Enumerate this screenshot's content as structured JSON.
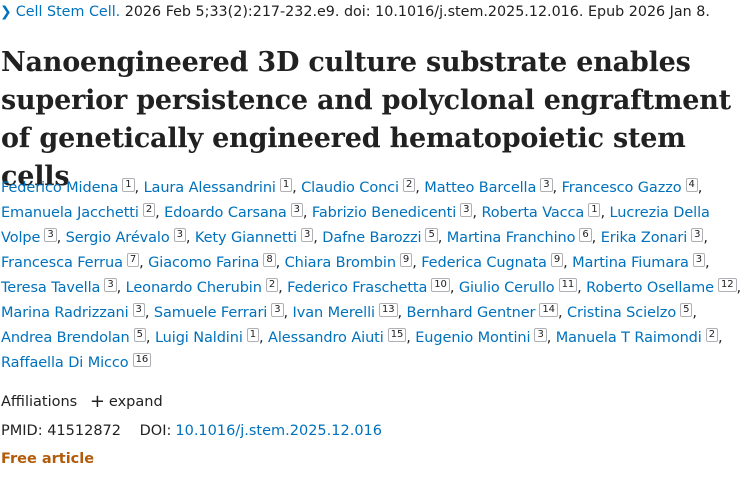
{
  "citation": {
    "journal": "Cell Stem Cell.",
    "details": " 2026 Feb 5;33(2):217-232.e9. doi: 10.1016/j.stem.2025.12.016. Epub 2026 Jan 8."
  },
  "title": "Nanoengineered 3D culture substrate enables superior persistence and polyclonal engraftment of genetically engineered hematopoietic stem cells",
  "authors": [
    {
      "name": "Federico Midena",
      "aff": "1"
    },
    {
      "name": "Laura Alessandrini",
      "aff": "1"
    },
    {
      "name": "Claudio Conci",
      "aff": "2"
    },
    {
      "name": "Matteo Barcella",
      "aff": "3"
    },
    {
      "name": "Francesco Gazzo",
      "aff": "4"
    },
    {
      "name": "Emanuela Jacchetti",
      "aff": "2"
    },
    {
      "name": "Edoardo Carsana",
      "aff": "3"
    },
    {
      "name": "Fabrizio Benedicenti",
      "aff": "3"
    },
    {
      "name": "Roberta Vacca",
      "aff": "1"
    },
    {
      "name": "Lucrezia Della Volpe",
      "aff": "3"
    },
    {
      "name": "Sergio Arévalo",
      "aff": "3"
    },
    {
      "name": "Kety Giannetti",
      "aff": "3"
    },
    {
      "name": "Dafne Barozzi",
      "aff": "5"
    },
    {
      "name": "Martina Franchino",
      "aff": "6"
    },
    {
      "name": "Erika Zonari",
      "aff": "3"
    },
    {
      "name": "Francesca Ferrua",
      "aff": "7"
    },
    {
      "name": "Giacomo Farina",
      "aff": "8"
    },
    {
      "name": "Chiara Brombin",
      "aff": "9"
    },
    {
      "name": "Federica Cugnata",
      "aff": "9"
    },
    {
      "name": "Martina Fiumara",
      "aff": "3"
    },
    {
      "name": "Teresa Tavella",
      "aff": "3"
    },
    {
      "name": "Leonardo Cherubin",
      "aff": "2"
    },
    {
      "name": "Federico Fraschetta",
      "aff": "10"
    },
    {
      "name": "Giulio Cerullo",
      "aff": "11"
    },
    {
      "name": "Roberto Osellame",
      "aff": "12"
    },
    {
      "name": "Marina Radrizzani",
      "aff": "3"
    },
    {
      "name": "Samuele Ferrari",
      "aff": "3"
    },
    {
      "name": "Ivan Merelli",
      "aff": "13"
    },
    {
      "name": "Bernhard Gentner",
      "aff": "14"
    },
    {
      "name": "Cristina Scielzo",
      "aff": "5"
    },
    {
      "name": "Andrea Brendolan",
      "aff": "5"
    },
    {
      "name": "Luigi Naldini",
      "aff": "1"
    },
    {
      "name": "Alessandro Aiuti",
      "aff": "15"
    },
    {
      "name": "Eugenio Montini",
      "aff": "3"
    },
    {
      "name": "Manuela T Raimondi",
      "aff": "2"
    },
    {
      "name": "Raffaella Di Micco",
      "aff": "16"
    }
  ],
  "affiliations": {
    "label": "Affiliations",
    "expand_label": "expand"
  },
  "identifiers": {
    "pmid_label": "PMID:",
    "pmid": "41512872",
    "doi_label": "DOI:",
    "doi": "10.1016/j.stem.2025.12.016"
  },
  "free_article": "Free article",
  "colors": {
    "link": "#0071bc",
    "text": "#212121",
    "free_article": "#b25b0a"
  },
  "icons": {
    "journal_chevron": "chevron-right-icon",
    "expand": "plus-icon"
  }
}
